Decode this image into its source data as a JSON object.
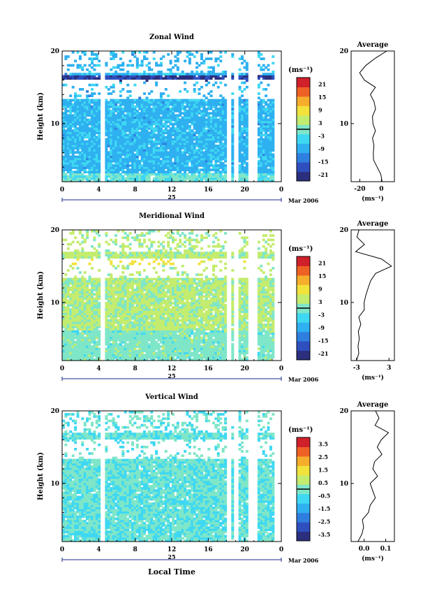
{
  "figure": {
    "xlabel_bottom": "Local Time",
    "date_label": "Mar 2006",
    "day_label": "25"
  },
  "chart_data": [
    {
      "type": "heatmap",
      "id": "zonal",
      "title": "Zonal Wind",
      "ylabel": "Height (km)",
      "ylim": [
        2,
        20
      ],
      "xlim": [
        0,
        24
      ],
      "x_ticks": [
        "0",
        "4",
        "8",
        "12",
        "16",
        "20",
        "0"
      ],
      "y_ticks": [
        "10",
        "20"
      ],
      "colorbar": {
        "unit": "(ms⁻¹)",
        "ticks": [
          "21",
          "15",
          "9",
          "3",
          "-3",
          "-9",
          "-15",
          "-21"
        ],
        "range": [
          -24,
          24
        ]
      },
      "field": {
        "gaps_hours": [
          4.2,
          18.2,
          19.0,
          20.4,
          21.0
        ],
        "data_end_hour": 23.0,
        "base_value": -8
      },
      "average": {
        "title": "Average",
        "xlabel": "(ms⁻¹)",
        "x_ticks": [
          "-20",
          "0"
        ],
        "xlim": [
          -28,
          12
        ],
        "y_ticks": [
          "10",
          "20"
        ],
        "height": [
          2,
          3,
          4,
          5,
          6,
          7,
          8,
          9,
          10,
          11,
          12,
          13,
          14,
          15,
          16,
          17,
          18,
          19,
          20
        ],
        "values": [
          1,
          -1,
          -4,
          -7,
          -8,
          -7,
          -8,
          -6,
          -8,
          -8,
          -6,
          -7,
          -10,
          -5,
          -16,
          -20,
          -14,
          -6,
          5
        ]
      }
    },
    {
      "type": "heatmap",
      "id": "meridional",
      "title": "Meridional Wind",
      "ylabel": "Height (km)",
      "ylim": [
        2,
        20
      ],
      "xlim": [
        0,
        24
      ],
      "x_ticks": [
        "0",
        "4",
        "8",
        "12",
        "16",
        "20",
        "0"
      ],
      "y_ticks": [
        "10",
        "20"
      ],
      "colorbar": {
        "unit": "(ms⁻¹)",
        "ticks": [
          "21",
          "15",
          "9",
          "3",
          "-3",
          "-9",
          "-15",
          "-21"
        ],
        "range": [
          -24,
          24
        ]
      },
      "field": {
        "gaps_hours": [
          4.2,
          18.2,
          19.0,
          20.4,
          21.0
        ],
        "data_end_hour": 23.0,
        "base_value": 3
      },
      "average": {
        "title": "Average",
        "xlabel": "(ms⁻¹)",
        "x_ticks": [
          "-3",
          "3"
        ],
        "xlim": [
          -4,
          4
        ],
        "y_ticks": [
          "10",
          "20"
        ],
        "height": [
          2,
          3,
          4,
          5,
          6,
          7,
          8,
          9,
          10,
          11,
          12,
          13,
          14,
          15,
          16,
          17,
          18,
          19,
          20
        ],
        "values": [
          -3,
          -2.5,
          -2.8,
          -2.5,
          -2.6,
          -2.3,
          -2.6,
          -1.5,
          -1.7,
          -1.3,
          -0.8,
          -0.5,
          0.5,
          3.5,
          1.5,
          -3.2,
          -1.5,
          -2.8,
          -2.6
        ]
      }
    },
    {
      "type": "heatmap",
      "id": "vertical",
      "title": "Vertical Wind",
      "ylabel": "Height (km)",
      "ylim": [
        2,
        20
      ],
      "xlim": [
        0,
        24
      ],
      "x_ticks": [
        "0",
        "4",
        "8",
        "12",
        "16",
        "20",
        "0"
      ],
      "y_ticks": [
        "10",
        "20"
      ],
      "colorbar": {
        "unit": "(ms⁻¹)",
        "ticks": [
          "3.5",
          "2.5",
          "1.5",
          "0.5",
          "-0.5",
          "-1.5",
          "-2.5",
          "-3.5"
        ],
        "range": [
          -4,
          4
        ]
      },
      "field": {
        "gaps_hours": [
          4.2,
          18.2,
          19.0,
          20.4,
          21.0
        ],
        "data_end_hour": 23.0,
        "base_value": -0.3
      },
      "average": {
        "title": "Average",
        "xlabel": "(ms⁻¹)",
        "x_ticks": [
          "0.0",
          "0.1"
        ],
        "xlim": [
          -0.06,
          0.14
        ],
        "y_ticks": [
          "10",
          "20"
        ],
        "height": [
          2,
          3,
          4,
          5,
          6,
          7,
          8,
          9,
          10,
          11,
          12,
          13,
          14,
          15,
          16,
          17,
          18,
          19,
          20
        ],
        "values": [
          -0.03,
          -0.01,
          0.0,
          -0.01,
          0.02,
          0.03,
          0.05,
          0.04,
          0.03,
          0.06,
          0.04,
          0.05,
          0.08,
          0.06,
          0.08,
          0.11,
          0.05,
          0.07,
          0.05
        ]
      }
    }
  ]
}
